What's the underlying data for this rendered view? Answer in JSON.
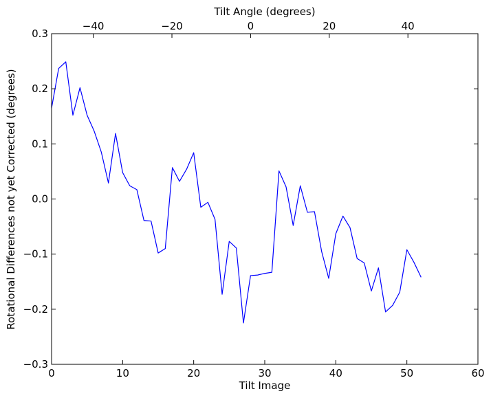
{
  "chart_data": {
    "type": "line",
    "xlabel": "Tilt Image",
    "ylabel": "Rotational Differences not yet Corrected (degrees)",
    "top_xlabel": "Tilt Angle (degrees)",
    "xlim": [
      0,
      60
    ],
    "ylim": [
      -0.3,
      0.3
    ],
    "top_xlim": [
      -50.6,
      57.8
    ],
    "x_ticks": [
      0,
      10,
      20,
      30,
      40,
      50,
      60
    ],
    "x_tick_labels": [
      "0",
      "10",
      "20",
      "30",
      "40",
      "50",
      "60"
    ],
    "y_ticks": [
      -0.3,
      -0.2,
      -0.1,
      0.0,
      0.1,
      0.2,
      0.3
    ],
    "y_tick_labels": [
      "−0.3",
      "−0.2",
      "−0.1",
      "0.0",
      "0.1",
      "0.2",
      "0.3"
    ],
    "top_x_ticks": [
      -40,
      -20,
      0,
      20,
      40
    ],
    "top_x_tick_labels": [
      "−40",
      "−20",
      "0",
      "20",
      "40"
    ],
    "grid": false,
    "colors": {
      "series": "#0000ff",
      "axes": "#000000",
      "background": "#ffffff"
    },
    "series": [
      {
        "x": [
          0,
          1,
          2,
          3,
          4,
          5,
          6,
          7,
          8,
          9,
          10,
          11,
          12,
          13,
          14,
          15,
          16,
          17,
          18,
          19,
          20,
          21,
          22,
          23,
          24,
          25,
          26,
          27,
          28,
          29,
          30,
          31,
          32,
          33,
          34,
          35,
          36,
          37,
          38,
          39,
          40,
          41,
          42,
          43,
          44,
          45,
          46,
          47,
          48,
          49,
          50,
          51,
          52
        ],
        "values": [
          0.165,
          0.237,
          0.249,
          0.152,
          0.202,
          0.152,
          0.123,
          0.085,
          0.029,
          0.119,
          0.048,
          0.024,
          0.017,
          -0.039,
          -0.04,
          -0.098,
          -0.09,
          0.057,
          0.032,
          0.054,
          0.084,
          -0.015,
          -0.006,
          -0.037,
          -0.173,
          -0.077,
          -0.089,
          -0.225,
          -0.139,
          -0.138,
          -0.135,
          -0.133,
          0.051,
          0.022,
          -0.048,
          0.024,
          -0.024,
          -0.023,
          -0.095,
          -0.144,
          -0.063,
          -0.031,
          -0.052,
          -0.108,
          -0.116,
          -0.167,
          -0.125,
          -0.205,
          -0.193,
          -0.169,
          -0.092,
          -0.115,
          -0.142
        ]
      }
    ]
  }
}
